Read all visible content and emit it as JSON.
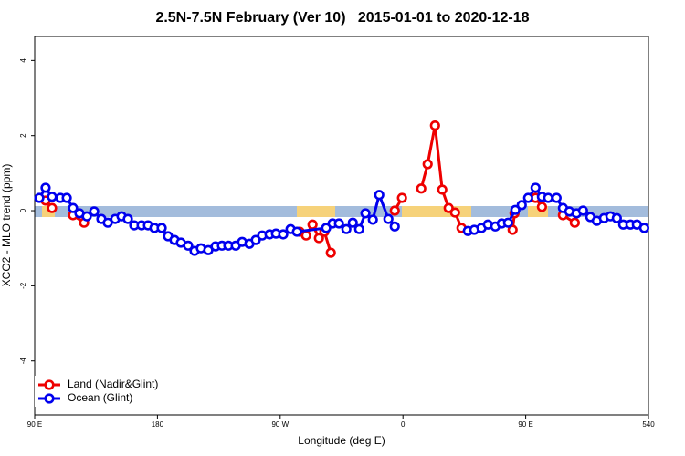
{
  "chart_data": {
    "type": "line",
    "title": "2.5N-7.5N February (Ver 10)   2015-01-01 to 2020-12-18",
    "x_label": "Longitude (deg E)",
    "y_label": "XCO2 - MLO trend (ppm)",
    "xlim": [
      90,
      540
    ],
    "xticks": [
      {
        "value": 90,
        "label": "90 E"
      },
      180,
      {
        "value": 270,
        "label": "90 W"
      },
      {
        "value": 360,
        "label": "0"
      },
      {
        "value": 450,
        "label": "90 E"
      },
      540
    ],
    "ylim": [
      -5.44,
      4.64
    ],
    "yticks": [
      -4,
      -2,
      0,
      2,
      4
    ],
    "legend": "bottom-left",
    "series": [
      {
        "name": "Land (Nadir&Glint)",
        "color": "#ee0000",
        "x": [
          98,
          102.7,
          null,
          118.1,
          126.2,
          null,
          284.3,
          289,
          293.7,
          298.4,
          302.4,
          307.1,
          null,
          354,
          359.3,
          null,
          373.4,
          378.1,
          383.5,
          388.8,
          393.5,
          398.2,
          402.9,
          null,
          440.4,
          441.8,
          null,
          457.2,
          461.9,
          null,
          477.3,
          486
        ],
        "values": [
          0.27,
          0.07,
          null,
          -0.12,
          -0.32,
          null,
          -0.56,
          -0.66,
          -0.37,
          -0.73,
          -0.56,
          -1.12,
          null,
          0.0,
          0.34,
          null,
          0.59,
          1.24,
          2.27,
          0.56,
          0.07,
          -0.05,
          -0.46,
          null,
          -0.51,
          -0.07,
          null,
          0.34,
          0.1,
          null,
          -0.12,
          -0.32
        ]
      },
      {
        "name": "Ocean (Glint)",
        "color": "#0000ee",
        "x": [
          93.4,
          98,
          102.7,
          108.8,
          113.5,
          118.1,
          122.8,
          128.2,
          133.6,
          138.9,
          143.6,
          149,
          153.7,
          158.3,
          163,
          168.4,
          173.1,
          177.8,
          183.1,
          187.8,
          192.5,
          197.2,
          202.5,
          207.2,
          211.9,
          217.3,
          222.6,
          227.3,
          232,
          237.4,
          242.1,
          247.4,
          252.1,
          256.8,
          262.2,
          266.9,
          272.2,
          277.6,
          282.3,
          303.7,
          308.4,
          313.1,
          318.5,
          323.2,
          327.9,
          332.5,
          337.9,
          342.6,
          349.3,
          354,
          null,
          407.6,
          412.3,
          417.6,
          422.3,
          427.7,
          432.4,
          437.1,
          442.4,
          447.1,
          451.8,
          457.2,
          461.9,
          466.5,
          472.6,
          477.3,
          482,
          487.3,
          492,
          497.4,
          502.1,
          507.4,
          512.1,
          516.8,
          521.5,
          526.8,
          531.5,
          536.9
        ],
        "values": [
          0.34,
          0.61,
          0.37,
          0.34,
          0.34,
          0.07,
          -0.07,
          -0.15,
          -0.02,
          -0.22,
          -0.32,
          -0.22,
          -0.15,
          -0.22,
          -0.39,
          -0.39,
          -0.39,
          -0.46,
          -0.46,
          -0.68,
          -0.78,
          -0.85,
          -0.93,
          -1.07,
          -1.0,
          -1.05,
          -0.95,
          -0.93,
          -0.93,
          -0.93,
          -0.83,
          -0.88,
          -0.78,
          -0.66,
          -0.63,
          -0.61,
          -0.63,
          -0.49,
          -0.56,
          -0.46,
          -0.34,
          -0.34,
          -0.49,
          -0.32,
          -0.49,
          -0.07,
          -0.24,
          0.42,
          -0.22,
          -0.42,
          null,
          -0.54,
          -0.51,
          -0.46,
          -0.37,
          -0.42,
          -0.34,
          -0.32,
          0.02,
          0.15,
          0.34,
          0.61,
          0.37,
          0.34,
          0.34,
          0.07,
          -0.02,
          -0.07,
          0.0,
          -0.17,
          -0.27,
          -0.2,
          -0.15,
          -0.2,
          -0.37,
          -0.37,
          -0.37,
          -0.46
        ]
      }
    ]
  }
}
